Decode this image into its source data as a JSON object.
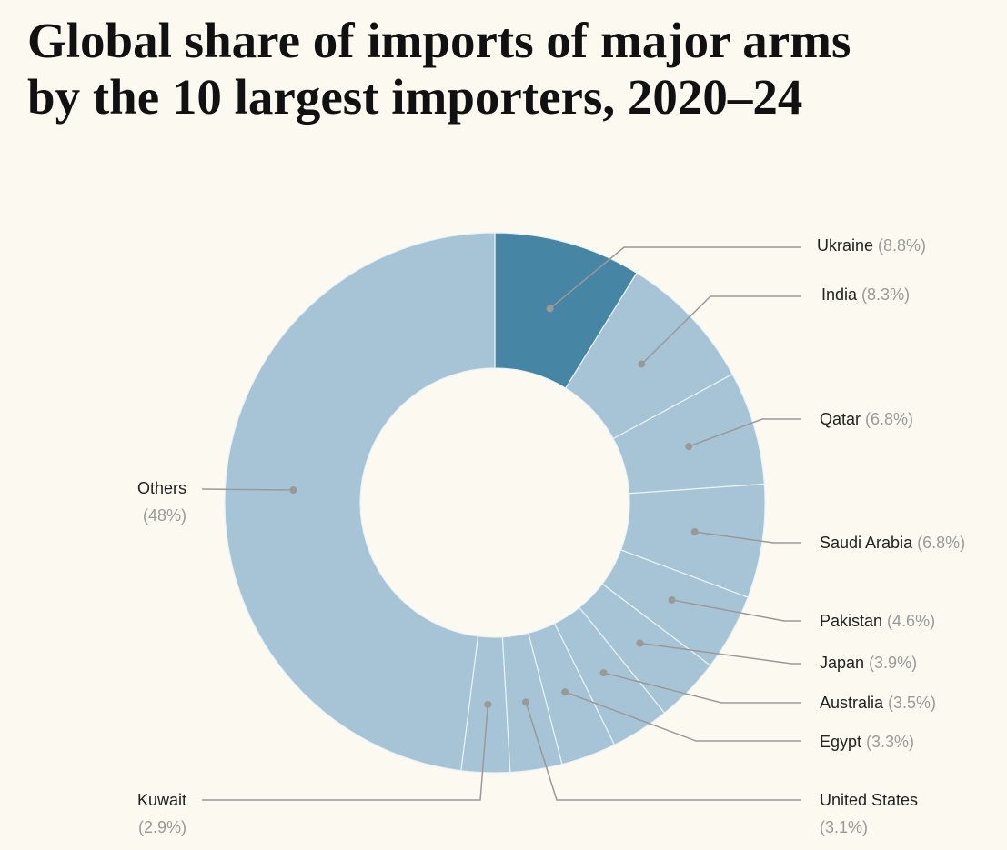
{
  "chart_data": {
    "type": "pie",
    "variant": "donut",
    "title_lines": [
      "Global share of imports of major arms",
      "by the  10 largest importers,  2020–24"
    ],
    "unit": "%",
    "start": "top, clockwise",
    "slices": [
      {
        "name": "Ukraine",
        "value": 8.8,
        "pct_label": "(8.8%)",
        "highlight": true
      },
      {
        "name": "India",
        "value": 8.3,
        "pct_label": "(8.3%)"
      },
      {
        "name": "Qatar",
        "value": 6.8,
        "pct_label": "(6.8%)"
      },
      {
        "name": "Saudi Arabia",
        "value": 6.8,
        "pct_label": "(6.8%)"
      },
      {
        "name": "Pakistan",
        "value": 4.6,
        "pct_label": "(4.6%)"
      },
      {
        "name": "Japan",
        "value": 3.9,
        "pct_label": "(3.9%)"
      },
      {
        "name": "Australia",
        "value": 3.5,
        "pct_label": "(3.5%)"
      },
      {
        "name": "Egypt",
        "value": 3.3,
        "pct_label": "(3.3%)"
      },
      {
        "name": "United States",
        "value": 3.1,
        "pct_label": "(3.1%)"
      },
      {
        "name": "Kuwait",
        "value": 2.9,
        "pct_label": "(2.9%)"
      },
      {
        "name": "Others",
        "value": 48,
        "pct_label": "(48%)"
      }
    ],
    "colors": {
      "highlight": "#4785a5",
      "default": "#a6c4d5",
      "separator": "#e8f2f7",
      "leader": "#999999",
      "background": "#fcf9f0"
    }
  }
}
